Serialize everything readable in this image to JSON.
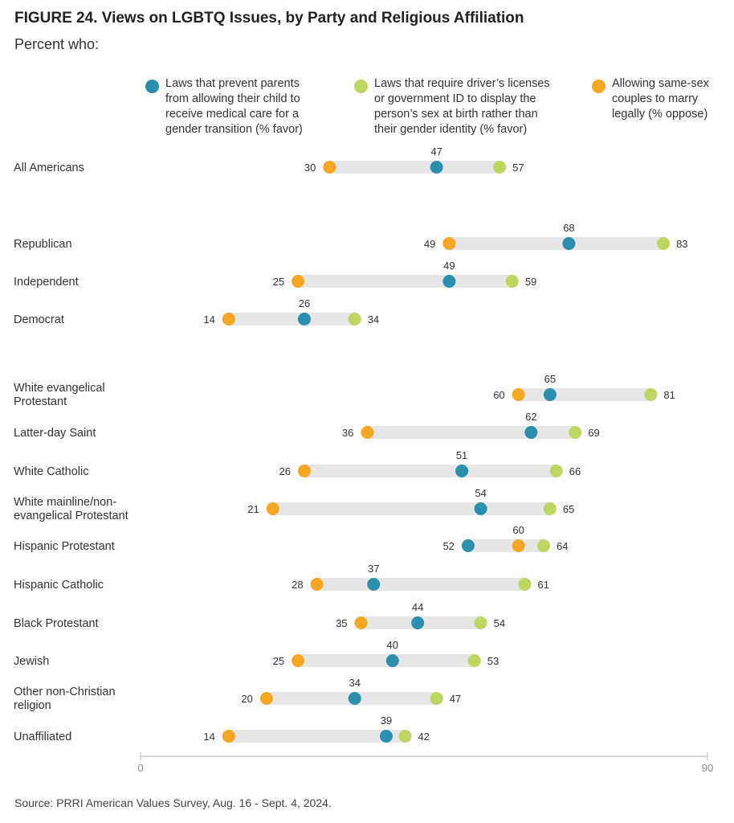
{
  "header": {
    "title": "FIGURE 24.  Views on LGBTQ Issues, by Party and Religious Affiliation",
    "subtitle": "Percent who:"
  },
  "source": "Source: PRRI American Values Survey, Aug. 16 - Sept. 4, 2024.",
  "colors": {
    "medical": "#2b8fae",
    "id": "#bcd660",
    "marriage": "#f5a623",
    "bar": "#e6e6e6",
    "axis": "#cccccc"
  },
  "chart_data": {
    "type": "dot-range",
    "title": "FIGURE 24.  Views on LGBTQ Issues, by Party and Religious Affiliation",
    "subtitle": "Percent who:",
    "xlim": [
      0,
      90
    ],
    "x_ticks": [
      0,
      90
    ],
    "legend_position": "top",
    "series": [
      {
        "key": "medical",
        "name": "Laws that prevent parents from allowing their child to receive medical care for a gender transition (% favor)",
        "lines": [
          "Laws that prevent parents",
          "from allowing their child to",
          "receive medical care for a",
          "gender transition (% favor)"
        ]
      },
      {
        "key": "id",
        "name": "Laws that require driver's licenses or government ID to display the person's sex at birth rather than their gender identity (% favor)",
        "lines": [
          "Laws that require driver’s licenses",
          "or government ID to display the",
          "person’s sex at birth rather than",
          "their gender identity (% favor)"
        ]
      },
      {
        "key": "marriage",
        "name": "Allowing same-sex couples to marry legally (% oppose)",
        "lines": [
          "Allowing same-sex",
          "couples to marry",
          "legally (% oppose)"
        ]
      }
    ],
    "categories": [
      {
        "label": [
          "All Americans"
        ],
        "medical": 47,
        "id": 57,
        "marriage": 30
      },
      {
        "label": [
          "Republican"
        ],
        "medical": 68,
        "id": 83,
        "marriage": 49
      },
      {
        "label": [
          "Independent"
        ],
        "medical": 49,
        "id": 59,
        "marriage": 25
      },
      {
        "label": [
          "Democrat"
        ],
        "medical": 26,
        "id": 34,
        "marriage": 14
      },
      {
        "label": [
          "White evangelical",
          "Protestant"
        ],
        "medical": 65,
        "id": 81,
        "marriage": 60
      },
      {
        "label": [
          "Latter-day Saint"
        ],
        "medical": 62,
        "id": 69,
        "marriage": 36
      },
      {
        "label": [
          "White Catholic"
        ],
        "medical": 51,
        "id": 66,
        "marriage": 26
      },
      {
        "label": [
          "White mainline/non-",
          "evangelical Protestant"
        ],
        "medical": 54,
        "id": 65,
        "marriage": 21
      },
      {
        "label": [
          "Hispanic Protestant"
        ],
        "medical": 52,
        "id": 64,
        "marriage": 60
      },
      {
        "label": [
          "Hispanic Catholic"
        ],
        "medical": 37,
        "id": 61,
        "marriage": 28
      },
      {
        "label": [
          "Black Protestant"
        ],
        "medical": 44,
        "id": 54,
        "marriage": 35
      },
      {
        "label": [
          "Jewish"
        ],
        "medical": 40,
        "id": 53,
        "marriage": 25
      },
      {
        "label": [
          "Other non-Christian",
          "religion"
        ],
        "medical": 34,
        "id": 47,
        "marriage": 20
      },
      {
        "label": [
          "Unaffiliated"
        ],
        "medical": 39,
        "id": 42,
        "marriage": 14
      }
    ]
  }
}
